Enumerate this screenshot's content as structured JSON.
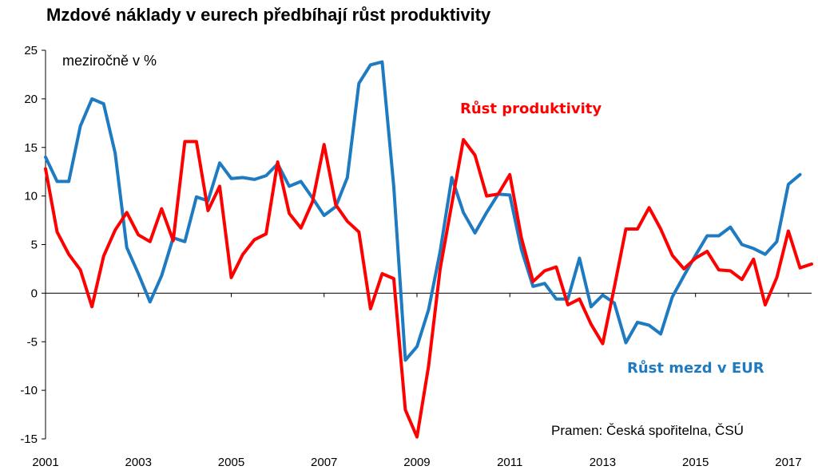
{
  "title": "Mzdové náklady v eurech předbíhají růst produktivity",
  "unit_note": "meziročně v %",
  "source_note": "Pramen: Česká spořitelna, ČSÚ",
  "colors": {
    "productivity": "#FF0000",
    "wages": "#1F7BC1",
    "axis": "#000000"
  },
  "chart_data": {
    "type": "line",
    "title": "Mzdové náklady v eurech předbíhají růst produktivity",
    "ylabel": "meziročně v %",
    "xlabel": "",
    "ylim": [
      -15,
      25
    ],
    "yticks": [
      25,
      20,
      15,
      10,
      5,
      0,
      -5,
      -10,
      -15
    ],
    "xlim": [
      2001,
      2017.5
    ],
    "xticks": [
      2001,
      2003,
      2005,
      2007,
      2009,
      2011,
      2013,
      2015,
      2017
    ],
    "grid": false,
    "series": [
      {
        "name": "Růst produktivity",
        "color": "#FF0000",
        "x": [
          2001,
          2001.25,
          2001.5,
          2001.75,
          2002,
          2002.25,
          2002.5,
          2002.75,
          2003,
          2003.25,
          2003.5,
          2003.75,
          2004,
          2004.25,
          2004.5,
          2004.75,
          2005,
          2005.25,
          2005.5,
          2005.75,
          2006,
          2006.25,
          2006.5,
          2006.75,
          2007,
          2007.25,
          2007.5,
          2007.75,
          2008,
          2008.25,
          2008.5,
          2008.75,
          2009,
          2009.25,
          2009.5,
          2009.75,
          2010,
          2010.25,
          2010.5,
          2010.75,
          2011,
          2011.25,
          2011.5,
          2011.75,
          2012,
          2012.25,
          2012.5,
          2012.75,
          2013,
          2013.25,
          2013.5,
          2013.75,
          2014,
          2014.25,
          2014.5,
          2014.75,
          2015,
          2015.25,
          2015.5,
          2015.75,
          2016,
          2016.25,
          2016.5,
          2016.75,
          2017,
          2017.25,
          2017.5
        ],
        "values": [
          12.8,
          6.3,
          4.0,
          2.4,
          -1.4,
          3.8,
          6.5,
          8.3,
          6.0,
          5.3,
          8.7,
          5.4,
          15.6,
          15.6,
          8.5,
          11.0,
          1.6,
          4.0,
          5.5,
          6.1,
          13.5,
          8.2,
          6.7,
          9.4,
          15.3,
          9.1,
          7.4,
          6.3,
          -1.6,
          2.0,
          1.5,
          -12.0,
          -14.8,
          -7.5,
          2.5,
          9.2,
          15.8,
          14.2,
          10.0,
          10.2,
          12.2,
          5.7,
          1.2,
          2.3,
          2.7,
          -1.2,
          -0.6,
          -3.2,
          -5.2,
          0.6,
          6.6,
          6.6,
          8.8,
          6.6,
          3.9,
          2.5,
          3.6,
          4.3,
          2.4,
          2.3,
          1.4,
          3.5,
          -1.2,
          1.6,
          6.4,
          2.6,
          3.0
        ]
      },
      {
        "name": "Růst mezd v EUR",
        "color": "#1F7BC1",
        "x": [
          2001,
          2001.25,
          2001.5,
          2001.75,
          2002,
          2002.25,
          2002.5,
          2002.75,
          2003,
          2003.25,
          2003.5,
          2003.75,
          2004,
          2004.25,
          2004.5,
          2004.75,
          2005,
          2005.25,
          2005.5,
          2005.75,
          2006,
          2006.25,
          2006.5,
          2006.75,
          2007,
          2007.25,
          2007.5,
          2007.75,
          2008,
          2008.25,
          2008.5,
          2008.75,
          2009,
          2009.25,
          2009.5,
          2009.75,
          2010,
          2010.25,
          2010.5,
          2010.75,
          2011,
          2011.25,
          2011.5,
          2011.75,
          2012,
          2012.25,
          2012.5,
          2012.75,
          2013,
          2013.25,
          2013.5,
          2013.75,
          2014,
          2014.25,
          2014.5,
          2014.75,
          2015,
          2015.25,
          2015.5,
          2015.75,
          2016,
          2016.25,
          2016.5,
          2016.75,
          2017,
          2017.25
        ],
        "values": [
          14.0,
          11.5,
          11.5,
          17.2,
          20.0,
          19.5,
          14.4,
          4.7,
          2.0,
          -0.9,
          1.8,
          5.7,
          5.3,
          9.9,
          9.5,
          13.4,
          11.8,
          11.9,
          11.7,
          12.1,
          13.3,
          11.0,
          11.5,
          9.8,
          8.0,
          8.9,
          11.9,
          21.6,
          23.5,
          23.8,
          11.0,
          -6.9,
          -5.5,
          -1.7,
          4.3,
          11.9,
          8.3,
          6.2,
          8.3,
          10.2,
          10.1,
          4.5,
          0.7,
          1.0,
          -0.6,
          -0.6,
          3.6,
          -1.4,
          -0.2,
          -1.0,
          -5.1,
          -3.0,
          -3.3,
          -4.2,
          -0.4,
          1.8,
          3.9,
          5.9,
          5.9,
          6.8,
          5.0,
          4.6,
          4.0,
          5.3,
          11.2,
          12.2
        ]
      }
    ]
  }
}
